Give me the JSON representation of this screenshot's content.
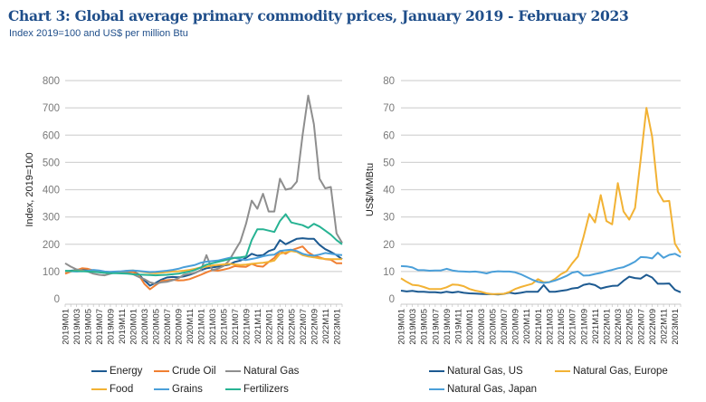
{
  "title": "Chart 3: Global average primary commodity prices, January 2019 - February 2023",
  "subtitle": "Index 2019=100 and US$ per million Btu",
  "chart_data": [
    {
      "type": "line",
      "ylabel": "Index, 2019=100",
      "ylim": [
        0,
        800
      ],
      "yticks": [
        0,
        100,
        200,
        300,
        400,
        500,
        600,
        700,
        800
      ],
      "grid": true,
      "legend_position": "bottom",
      "x": [
        "2019M01",
        "2019M02",
        "2019M03",
        "2019M04",
        "2019M05",
        "2019M06",
        "2019M07",
        "2019M08",
        "2019M09",
        "2019M10",
        "2019M11",
        "2019M12",
        "2020M01",
        "2020M02",
        "2020M03",
        "2020M04",
        "2020M05",
        "2020M06",
        "2020M07",
        "2020M08",
        "2020M09",
        "2020M10",
        "2020M11",
        "2020M12",
        "2021M01",
        "2021M02",
        "2021M03",
        "2021M04",
        "2021M05",
        "2021M06",
        "2021M07",
        "2021M08",
        "2021M09",
        "2021M10",
        "2021M11",
        "2021M12",
        "2022M01",
        "2022M02",
        "2022M03",
        "2022M04",
        "2022M05",
        "2022M06",
        "2022M07",
        "2022M08",
        "2022M09",
        "2022M10",
        "2022M11",
        "2022M12",
        "2023M01",
        "2023M02"
      ],
      "xtick_labels": [
        "2019M01",
        "2019M03",
        "2019M05",
        "2019M07",
        "2019M09",
        "2019M11",
        "2020M01",
        "2020M03",
        "2020M05",
        "2020M07",
        "2020M09",
        "2020M11",
        "2021M01",
        "2021M03",
        "2021M05",
        "2021M07",
        "2021M09",
        "2021M11",
        "2022M01",
        "2022M03",
        "2022M05",
        "2022M07",
        "2022M09",
        "2022M11",
        "2023M01"
      ],
      "series": [
        {
          "name": "Energy",
          "color": "#1d5a91",
          "values": [
            100,
            103,
            105,
            106,
            107,
            104,
            98,
            95,
            96,
            98,
            99,
            101,
            100,
            90,
            68,
            48,
            58,
            70,
            78,
            80,
            79,
            82,
            88,
            95,
            105,
            112,
            115,
            118,
            122,
            125,
            135,
            140,
            150,
            165,
            158,
            160,
            175,
            182,
            215,
            200,
            210,
            220,
            222,
            220,
            220,
            198,
            182,
            172,
            160,
            145
          ]
        },
        {
          "name": "Crude Oil",
          "color": "#f07f32",
          "values": [
            92,
            100,
            105,
            112,
            110,
            104,
            100,
            95,
            97,
            96,
            98,
            100,
            98,
            88,
            55,
            35,
            50,
            65,
            68,
            70,
            67,
            68,
            72,
            80,
            88,
            97,
            105,
            103,
            107,
            112,
            120,
            118,
            117,
            128,
            120,
            118,
            135,
            150,
            175,
            165,
            178,
            185,
            192,
            170,
            158,
            152,
            145,
            143,
            130,
            130
          ]
        },
        {
          "name": "Natural Gas",
          "color": "#8e8e8e",
          "values": [
            130,
            118,
            108,
            104,
            100,
            92,
            88,
            86,
            92,
            98,
            100,
            96,
            90,
            80,
            72,
            60,
            55,
            60,
            62,
            68,
            75,
            88,
            92,
            95,
            105,
            160,
            105,
            110,
            120,
            140,
            175,
            210,
            275,
            360,
            330,
            385,
            320,
            320,
            440,
            400,
            405,
            430,
            600,
            745,
            640,
            440,
            405,
            410,
            240,
            205
          ]
        },
        {
          "name": "Food",
          "color": "#f2b234",
          "values": [
            100,
            101,
            102,
            102,
            101,
            100,
            99,
            98,
            98,
            99,
            100,
            103,
            104,
            101,
            98,
            95,
            94,
            96,
            98,
            100,
            101,
            103,
            106,
            110,
            115,
            118,
            122,
            124,
            126,
            128,
            126,
            124,
            125,
            128,
            130,
            132,
            135,
            140,
            165,
            170,
            175,
            172,
            160,
            155,
            152,
            148,
            146,
            145,
            145,
            145
          ]
        },
        {
          "name": "Grains",
          "color": "#4a9fd9",
          "values": [
            102,
            101,
            100,
            101,
            103,
            106,
            104,
            100,
            99,
            100,
            101,
            103,
            104,
            102,
            100,
            98,
            99,
            101,
            103,
            106,
            110,
            116,
            120,
            124,
            132,
            136,
            138,
            140,
            145,
            150,
            150,
            145,
            142,
            146,
            150,
            156,
            160,
            162,
            175,
            178,
            180,
            175,
            165,
            160,
            158,
            162,
            168,
            165,
            162,
            160
          ]
        },
        {
          "name": "Fertilizers",
          "color": "#27b393",
          "values": [
            103,
            102,
            102,
            101,
            100,
            99,
            97,
            95,
            94,
            94,
            93,
            92,
            90,
            89,
            88,
            87,
            86,
            87,
            88,
            90,
            92,
            96,
            100,
            106,
            115,
            125,
            130,
            135,
            140,
            145,
            150,
            152,
            155,
            215,
            255,
            255,
            250,
            245,
            285,
            310,
            280,
            275,
            270,
            260,
            275,
            265,
            250,
            235,
            215,
            200
          ]
        }
      ]
    },
    {
      "type": "line",
      "ylabel": "US$/MMBtu",
      "ylim": [
        0,
        80
      ],
      "yticks": [
        0,
        10,
        20,
        30,
        40,
        50,
        60,
        70,
        80
      ],
      "grid": true,
      "legend_position": "bottom",
      "x": [
        "2019M01",
        "2019M02",
        "2019M03",
        "2019M04",
        "2019M05",
        "2019M06",
        "2019M07",
        "2019M08",
        "2019M09",
        "2019M10",
        "2019M11",
        "2019M12",
        "2020M01",
        "2020M02",
        "2020M03",
        "2020M04",
        "2020M05",
        "2020M06",
        "2020M07",
        "2020M08",
        "2020M09",
        "2020M10",
        "2020M11",
        "2020M12",
        "2021M01",
        "2021M02",
        "2021M03",
        "2021M04",
        "2021M05",
        "2021M06",
        "2021M07",
        "2021M08",
        "2021M09",
        "2021M10",
        "2021M11",
        "2021M12",
        "2022M01",
        "2022M02",
        "2022M03",
        "2022M04",
        "2022M05",
        "2022M06",
        "2022M07",
        "2022M08",
        "2022M09",
        "2022M10",
        "2022M11",
        "2022M12",
        "2023M01",
        "2023M02"
      ],
      "xtick_labels": [
        "2019M01",
        "2019M03",
        "2019M05",
        "2019M07",
        "2019M09",
        "2019M11",
        "2020M01",
        "2020M03",
        "2020M05",
        "2020M07",
        "2020M09",
        "2020M11",
        "2021M01",
        "2021M03",
        "2021M05",
        "2021M07",
        "2021M09",
        "2021M11",
        "2022M01",
        "2022M03",
        "2022M05",
        "2022M07",
        "2022M09",
        "2022M11",
        "2023M01"
      ],
      "series": [
        {
          "name": "Natural Gas, US",
          "color": "#1d5a91",
          "values": [
            3.0,
            2.7,
            2.9,
            2.6,
            2.6,
            2.4,
            2.4,
            2.2,
            2.6,
            2.3,
            2.6,
            2.2,
            2.0,
            1.9,
            1.8,
            1.7,
            1.7,
            1.6,
            1.8,
            2.3,
            1.9,
            2.2,
            2.6,
            2.6,
            2.6,
            5.0,
            2.6,
            2.6,
            2.9,
            3.2,
            3.8,
            4.0,
            5.1,
            5.5,
            5.0,
            3.8,
            4.3,
            4.7,
            4.8,
            6.6,
            8.1,
            7.6,
            7.4,
            8.8,
            7.8,
            5.5,
            5.5,
            5.6,
            3.3,
            2.4
          ]
        },
        {
          "name": "Natural Gas, Europe",
          "color": "#f2b234",
          "values": [
            7.5,
            6.2,
            5.1,
            4.9,
            4.3,
            3.6,
            3.6,
            3.6,
            4.2,
            5.2,
            5.1,
            4.6,
            3.6,
            3.0,
            2.6,
            2.0,
            1.7,
            1.8,
            1.8,
            2.5,
            3.6,
            4.3,
            4.9,
            5.5,
            7.2,
            6.1,
            6.1,
            7.3,
            9.0,
            10.1,
            13.0,
            15.5,
            22.8,
            31.1,
            28.0,
            38.0,
            28.5,
            27.3,
            42.4,
            32.0,
            29.0,
            33.3,
            51.3,
            70.0,
            59.4,
            39.3,
            35.7,
            35.9,
            20.2,
            16.8
          ]
        },
        {
          "name": "Natural Gas, Japan",
          "color": "#4a9fd9",
          "values": [
            12.0,
            11.9,
            11.5,
            10.5,
            10.5,
            10.3,
            10.4,
            10.4,
            11.0,
            10.4,
            10.1,
            10.0,
            9.9,
            10.0,
            9.7,
            9.3,
            9.9,
            10.1,
            10.0,
            10.0,
            9.7,
            9.0,
            8.0,
            7.0,
            6.2,
            5.8,
            6.1,
            6.7,
            7.5,
            8.4,
            9.6,
            10.0,
            8.5,
            8.6,
            9.1,
            9.5,
            10.1,
            10.6,
            11.2,
            11.6,
            12.5,
            13.6,
            15.3,
            15.2,
            14.8,
            16.9,
            15.0,
            16.1,
            16.5,
            15.4
          ]
        }
      ]
    }
  ],
  "legend_left": [
    {
      "label": "Energy",
      "color": "#1d5a91"
    },
    {
      "label": "Crude Oil",
      "color": "#f07f32"
    },
    {
      "label": "Natural Gas",
      "color": "#8e8e8e"
    },
    {
      "label": "Food",
      "color": "#f2b234"
    },
    {
      "label": "Grains",
      "color": "#4a9fd9"
    },
    {
      "label": "Fertilizers",
      "color": "#27b393"
    }
  ],
  "legend_right": [
    {
      "label": "Natural Gas, US",
      "color": "#1d5a91"
    },
    {
      "label": "Natural Gas, Europe",
      "color": "#f2b234"
    },
    {
      "label": "Natural Gas, Japan",
      "color": "#4a9fd9"
    }
  ]
}
